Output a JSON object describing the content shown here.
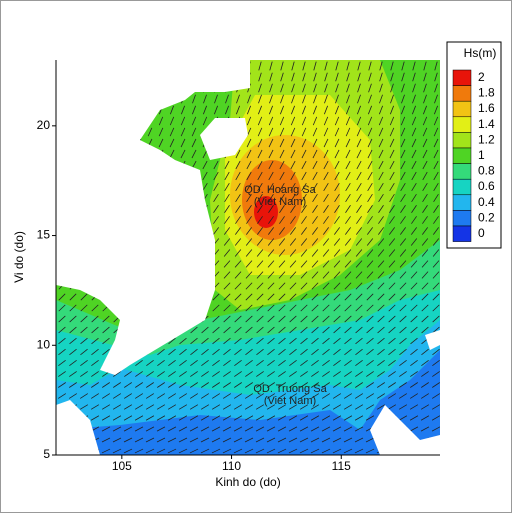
{
  "chart_data": {
    "type": "contour",
    "xlabel": "Kinh do (do)",
    "ylabel": "Vi do (do)",
    "xlim": [
      102,
      119.5
    ],
    "ylim": [
      5,
      23
    ],
    "xticks": [
      105,
      110,
      115
    ],
    "yticks": [
      5,
      10,
      15,
      20
    ],
    "colorbar": {
      "title": "Hs(m)",
      "levels": [
        2,
        1.8,
        1.6,
        1.4,
        1.2,
        1,
        0.8,
        0.6,
        0.4,
        0.2,
        0
      ],
      "colors": [
        "#e8140a",
        "#f07a0c",
        "#f2c314",
        "#e2ef16",
        "#a2e41a",
        "#4fd424",
        "#34da7a",
        "#16d4c2",
        "#22b6ee",
        "#1e7af0",
        "#1434e6"
      ]
    },
    "annotations": [
      "QD. Hoang Sa",
      "(Viet Nam)",
      "QD. Truong Sa",
      "(Viet Nam)"
    ]
  }
}
